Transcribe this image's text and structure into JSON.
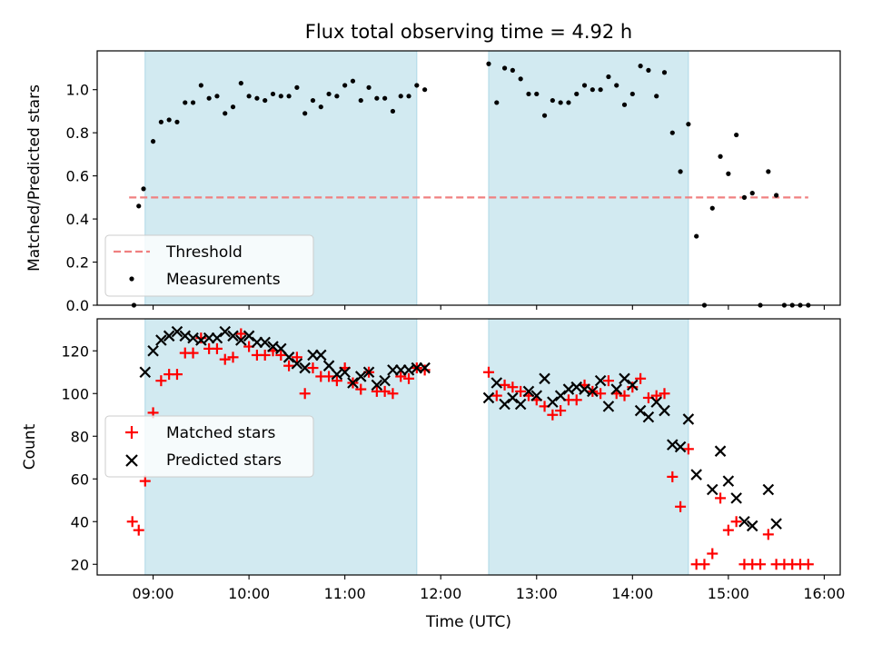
{
  "chart_data": {
    "title": "Flux total observing time = 4.92 h",
    "type": "scatter",
    "shaded_intervals": [
      [
        "08:55",
        "11:45"
      ],
      [
        "12:30",
        "14:35"
      ]
    ],
    "x_ticks": [
      "09:00",
      "10:00",
      "11:00",
      "12:00",
      "13:00",
      "14:00",
      "15:00",
      "16:00"
    ],
    "xlabel": "Time (UTC)",
    "xlim": [
      "08:25",
      "16:10"
    ],
    "colors": {
      "shade": "#add8e6",
      "threshold": "#f08080",
      "measurements": "#000000",
      "matched": "#ff0000",
      "predicted": "#000000"
    },
    "panels": [
      {
        "ylabel": "Matched/Predicted stars",
        "ylim": [
          0,
          1.18
        ],
        "y_ticks": [
          "0.0",
          "0.2",
          "0.4",
          "0.6",
          "0.8",
          "1.0"
        ],
        "legend": {
          "placement": "lower-left",
          "entries": [
            "Threshold",
            "Measurements"
          ]
        },
        "threshold": {
          "name": "Threshold",
          "y": 0.5,
          "x_range": [
            "08:45",
            "15:50"
          ]
        },
        "series": [
          {
            "name": "Measurements",
            "marker": "dot",
            "points": [
              [
                "08:48",
                0.0
              ],
              [
                "08:51",
                0.46
              ],
              [
                "08:54",
                0.54
              ],
              [
                "09:00",
                0.76
              ],
              [
                "09:05",
                0.85
              ],
              [
                "09:10",
                0.86
              ],
              [
                "09:15",
                0.85
              ],
              [
                "09:20",
                0.94
              ],
              [
                "09:25",
                0.94
              ],
              [
                "09:30",
                1.02
              ],
              [
                "09:35",
                0.96
              ],
              [
                "09:40",
                0.97
              ],
              [
                "09:45",
                0.89
              ],
              [
                "09:50",
                0.92
              ],
              [
                "09:55",
                1.03
              ],
              [
                "10:00",
                0.97
              ],
              [
                "10:05",
                0.96
              ],
              [
                "10:10",
                0.95
              ],
              [
                "10:15",
                0.98
              ],
              [
                "10:20",
                0.97
              ],
              [
                "10:25",
                0.97
              ],
              [
                "10:30",
                1.01
              ],
              [
                "10:35",
                0.89
              ],
              [
                "10:40",
                0.95
              ],
              [
                "10:45",
                0.92
              ],
              [
                "10:50",
                0.98
              ],
              [
                "10:55",
                0.97
              ],
              [
                "11:00",
                1.02
              ],
              [
                "11:05",
                1.04
              ],
              [
                "11:10",
                0.95
              ],
              [
                "11:15",
                1.01
              ],
              [
                "11:20",
                0.96
              ],
              [
                "11:25",
                0.96
              ],
              [
                "11:30",
                0.9
              ],
              [
                "11:35",
                0.97
              ],
              [
                "11:40",
                0.97
              ],
              [
                "11:45",
                1.02
              ],
              [
                "11:50",
                1.0
              ],
              [
                "12:30",
                1.12
              ],
              [
                "12:35",
                0.94
              ],
              [
                "12:40",
                1.1
              ],
              [
                "12:45",
                1.09
              ],
              [
                "12:50",
                1.05
              ],
              [
                "12:55",
                0.98
              ],
              [
                "13:00",
                0.98
              ],
              [
                "13:05",
                0.88
              ],
              [
                "13:10",
                0.95
              ],
              [
                "13:15",
                0.94
              ],
              [
                "13:20",
                0.94
              ],
              [
                "13:25",
                0.98
              ],
              [
                "13:30",
                1.02
              ],
              [
                "13:35",
                1.0
              ],
              [
                "13:40",
                1.0
              ],
              [
                "13:45",
                1.06
              ],
              [
                "13:50",
                1.02
              ],
              [
                "13:55",
                0.93
              ],
              [
                "14:00",
                0.98
              ],
              [
                "14:05",
                1.11
              ],
              [
                "14:10",
                1.09
              ],
              [
                "14:15",
                0.97
              ],
              [
                "14:20",
                1.08
              ],
              [
                "14:25",
                0.8
              ],
              [
                "14:30",
                0.62
              ],
              [
                "14:35",
                0.84
              ],
              [
                "14:40",
                0.32
              ],
              [
                "14:45",
                0.0
              ],
              [
                "14:50",
                0.45
              ],
              [
                "14:55",
                0.69
              ],
              [
                "15:00",
                0.61
              ],
              [
                "15:05",
                0.79
              ],
              [
                "15:10",
                0.5
              ],
              [
                "15:15",
                0.52
              ],
              [
                "15:25",
                0.62
              ],
              [
                "15:30",
                0.51
              ],
              [
                "15:20",
                0.0
              ],
              [
                "15:35",
                0.0
              ],
              [
                "15:40",
                0.0
              ],
              [
                "15:45",
                0.0
              ],
              [
                "15:50",
                0.0
              ]
            ]
          }
        ]
      },
      {
        "ylabel": "Count",
        "ylim": [
          15,
          135
        ],
        "y_ticks": [
          "20",
          "40",
          "60",
          "80",
          "100",
          "120"
        ],
        "legend": {
          "placement": "center-left",
          "entries": [
            "Matched stars",
            "Predicted stars"
          ]
        },
        "series": [
          {
            "name": "Matched stars",
            "marker": "plus",
            "points": [
              [
                "08:47",
                40
              ],
              [
                "08:51",
                36
              ],
              [
                "08:55",
                59
              ],
              [
                "09:00",
                91
              ],
              [
                "09:05",
                106
              ],
              [
                "09:10",
                109
              ],
              [
                "09:15",
                109
              ],
              [
                "09:20",
                119
              ],
              [
                "09:25",
                119
              ],
              [
                "09:30",
                126
              ],
              [
                "09:35",
                121
              ],
              [
                "09:40",
                121
              ],
              [
                "09:45",
                116
              ],
              [
                "09:50",
                117
              ],
              [
                "09:55",
                128
              ],
              [
                "10:00",
                122
              ],
              [
                "10:05",
                118
              ],
              [
                "10:10",
                118
              ],
              [
                "10:15",
                120
              ],
              [
                "10:20",
                118
              ],
              [
                "10:25",
                113
              ],
              [
                "10:30",
                117
              ],
              [
                "10:35",
                100
              ],
              [
                "10:40",
                112
              ],
              [
                "10:45",
                108
              ],
              [
                "10:50",
                108
              ],
              [
                "10:55",
                106
              ],
              [
                "11:00",
                112
              ],
              [
                "11:05",
                105
              ],
              [
                "11:10",
                102
              ],
              [
                "11:15",
                110
              ],
              [
                "11:20",
                101
              ],
              [
                "11:25",
                101
              ],
              [
                "11:30",
                100
              ],
              [
                "11:35",
                108
              ],
              [
                "11:40",
                107
              ],
              [
                "11:45",
                112
              ],
              [
                "11:50",
                111
              ],
              [
                "12:30",
                110
              ],
              [
                "12:35",
                99
              ],
              [
                "12:40",
                104
              ],
              [
                "12:45",
                103
              ],
              [
                "12:50",
                101
              ],
              [
                "12:55",
                99
              ],
              [
                "13:00",
                97
              ],
              [
                "13:05",
                94
              ],
              [
                "13:10",
                90
              ],
              [
                "13:15",
                92
              ],
              [
                "13:20",
                97
              ],
              [
                "13:25",
                97
              ],
              [
                "13:30",
                104
              ],
              [
                "13:35",
                101
              ],
              [
                "13:40",
                100
              ],
              [
                "13:45",
                106
              ],
              [
                "13:50",
                100
              ],
              [
                "13:55",
                99
              ],
              [
                "14:00",
                103
              ],
              [
                "14:05",
                107
              ],
              [
                "14:10",
                98
              ],
              [
                "14:15",
                99
              ],
              [
                "14:20",
                100
              ],
              [
                "14:25",
                61
              ],
              [
                "14:30",
                47
              ],
              [
                "14:35",
                74
              ],
              [
                "14:40",
                20
              ],
              [
                "14:45",
                20
              ],
              [
                "14:50",
                25
              ],
              [
                "14:55",
                51
              ],
              [
                "15:00",
                36
              ],
              [
                "15:05",
                40
              ],
              [
                "15:10",
                20
              ],
              [
                "15:15",
                20
              ],
              [
                "15:20",
                20
              ],
              [
                "15:25",
                34
              ],
              [
                "15:30",
                20
              ],
              [
                "15:35",
                20
              ],
              [
                "15:40",
                20
              ],
              [
                "15:45",
                20
              ],
              [
                "15:50",
                20
              ]
            ]
          },
          {
            "name": "Predicted stars",
            "marker": "x",
            "points": [
              [
                "08:55",
                110
              ],
              [
                "09:00",
                120
              ],
              [
                "09:05",
                125
              ],
              [
                "09:10",
                127
              ],
              [
                "09:15",
                129
              ],
              [
                "09:20",
                127
              ],
              [
                "09:25",
                126
              ],
              [
                "09:30",
                125
              ],
              [
                "09:35",
                126
              ],
              [
                "09:40",
                126
              ],
              [
                "09:45",
                129
              ],
              [
                "09:50",
                127
              ],
              [
                "09:55",
                125
              ],
              [
                "10:00",
                127
              ],
              [
                "10:05",
                124
              ],
              [
                "10:10",
                124
              ],
              [
                "10:15",
                122
              ],
              [
                "10:20",
                121
              ],
              [
                "10:25",
                117
              ],
              [
                "10:30",
                114
              ],
              [
                "10:35",
                112
              ],
              [
                "10:40",
                118
              ],
              [
                "10:45",
                118
              ],
              [
                "10:50",
                113
              ],
              [
                "10:55",
                109
              ],
              [
                "11:00",
                110
              ],
              [
                "11:05",
                105
              ],
              [
                "11:10",
                108
              ],
              [
                "11:15",
                110
              ],
              [
                "11:20",
                104
              ],
              [
                "11:25",
                106
              ],
              [
                "11:30",
                111
              ],
              [
                "11:35",
                111
              ],
              [
                "11:40",
                111
              ],
              [
                "11:45",
                112
              ],
              [
                "11:50",
                112
              ],
              [
                "12:30",
                98
              ],
              [
                "12:35",
                105
              ],
              [
                "12:40",
                95
              ],
              [
                "12:45",
                98
              ],
              [
                "12:50",
                95
              ],
              [
                "12:55",
                101
              ],
              [
                "13:00",
                99
              ],
              [
                "13:05",
                107
              ],
              [
                "13:10",
                96
              ],
              [
                "13:15",
                99
              ],
              [
                "13:20",
                102
              ],
              [
                "13:25",
                103
              ],
              [
                "13:30",
                102
              ],
              [
                "13:35",
                101
              ],
              [
                "13:40",
                106
              ],
              [
                "13:45",
                94
              ],
              [
                "13:50",
                102
              ],
              [
                "13:55",
                107
              ],
              [
                "14:00",
                104
              ],
              [
                "14:05",
                92
              ],
              [
                "14:10",
                89
              ],
              [
                "14:15",
                96
              ],
              [
                "14:20",
                92
              ],
              [
                "14:25",
                76
              ],
              [
                "14:30",
                75
              ],
              [
                "14:35",
                88
              ],
              [
                "14:40",
                62
              ],
              [
                "14:50",
                55
              ],
              [
                "14:55",
                73
              ],
              [
                "15:00",
                59
              ],
              [
                "15:05",
                51
              ],
              [
                "15:10",
                40
              ],
              [
                "15:15",
                38
              ],
              [
                "15:25",
                55
              ],
              [
                "15:30",
                39
              ]
            ]
          }
        ]
      }
    ]
  }
}
